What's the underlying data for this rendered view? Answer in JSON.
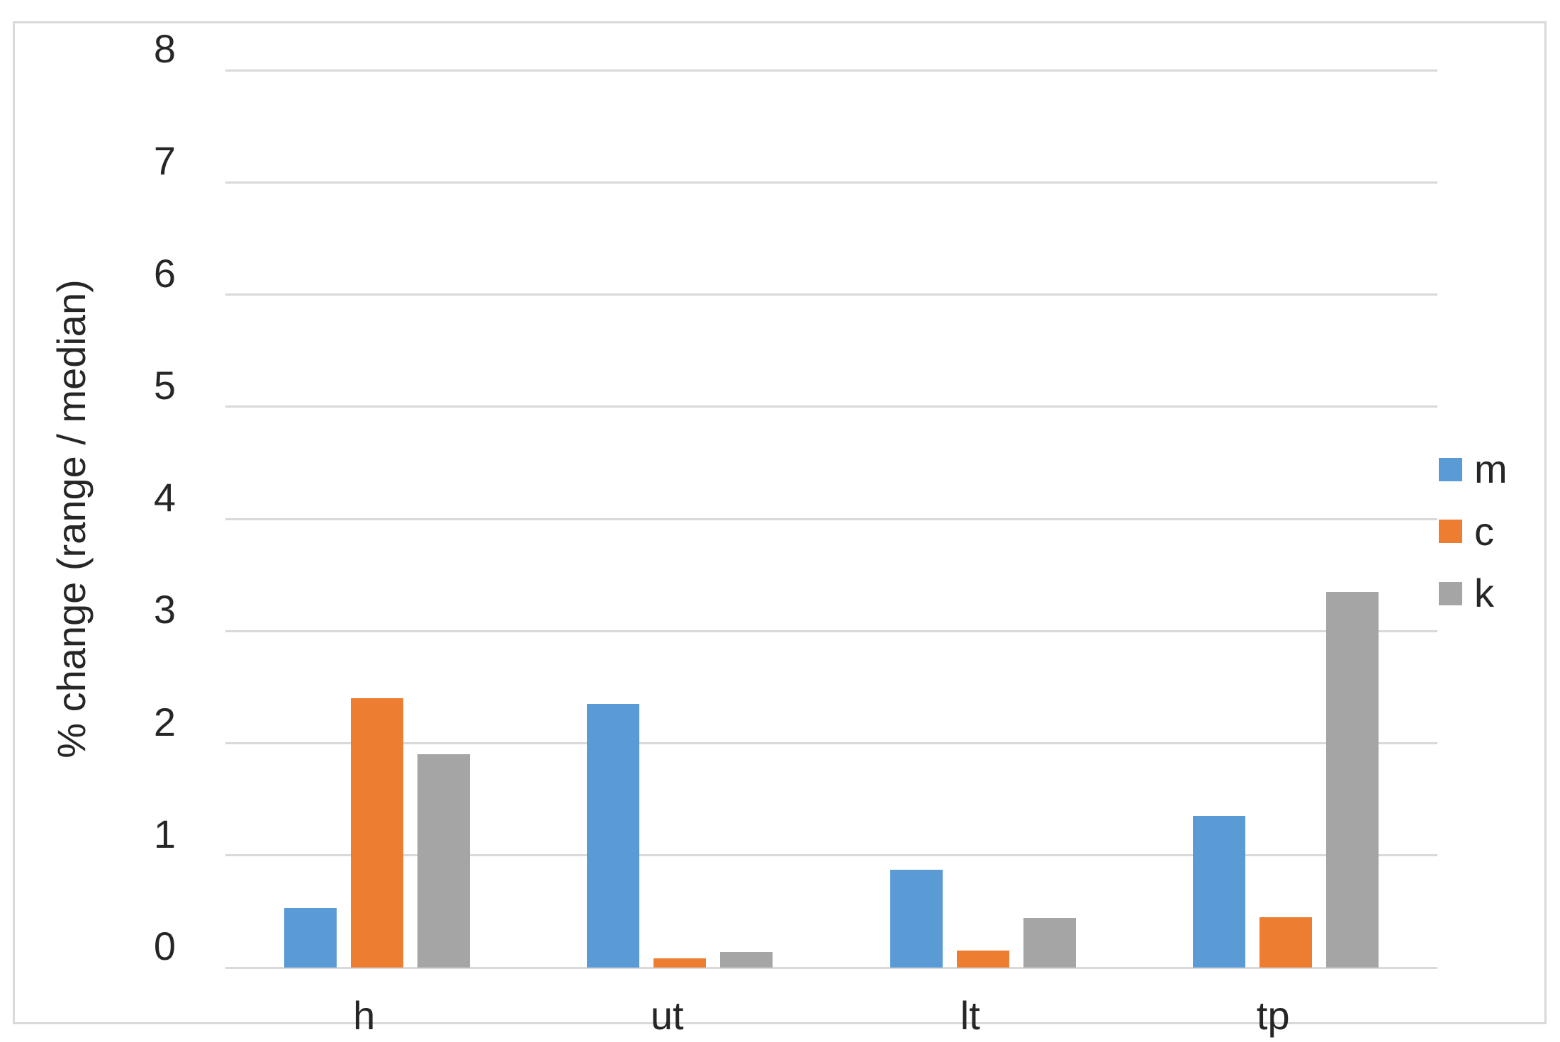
{
  "chart_data": {
    "type": "bar",
    "title": "",
    "categories": [
      "h",
      "ut",
      "lt",
      "tp"
    ],
    "series": [
      {
        "name": "m",
        "color": "#5B9BD5",
        "values": [
          0.53,
          2.35,
          0.87,
          1.35
        ]
      },
      {
        "name": "c",
        "color": "#ED7D31",
        "values": [
          2.4,
          0.08,
          0.15,
          0.45
        ]
      },
      {
        "name": "k",
        "color": "#A5A5A5",
        "values": [
          1.9,
          0.14,
          0.44,
          3.35
        ]
      }
    ],
    "xlabel": "",
    "ylabel": "% change (range / median)",
    "ylim": [
      0,
      8
    ],
    "yticks": [
      0,
      1,
      2,
      3,
      4,
      5,
      6,
      7,
      8
    ],
    "grid": true,
    "legend_position": "right"
  },
  "colors": {
    "background": "#FFFFFF",
    "frame_border": "#D9D9D9",
    "gridline": "#D9D9D9",
    "axis_line": "#D9D9D9",
    "text": "#262626"
  }
}
